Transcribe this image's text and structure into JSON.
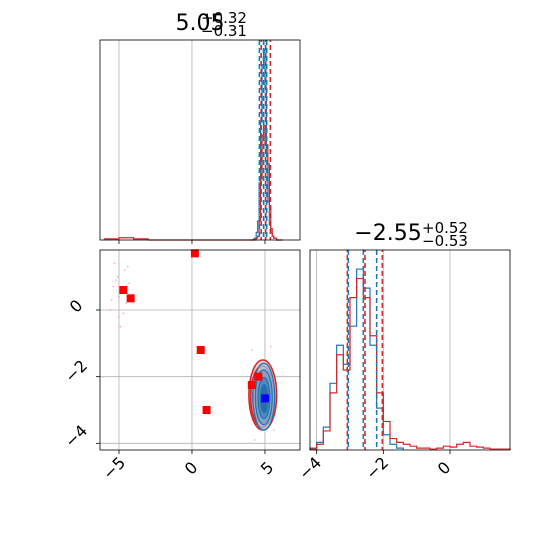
{
  "chart_data": {
    "type": "corner",
    "grid": true,
    "colors": {
      "series_1": "#1f77b4",
      "series_2": "#d62728",
      "marker_red": "#ff0000",
      "marker_blue": "#0000ff",
      "scatter_points": "#e377c2"
    },
    "panels": [
      {
        "id": "top",
        "type": "histogram",
        "title": {
          "value": "5.05",
          "plus": "+0.32",
          "minus": "−0.31"
        },
        "xlim": [
          -6.3,
          7.4
        ],
        "ylim": [
          0,
          1.05
        ],
        "x_ticks": [
          -5,
          0,
          5
        ],
        "quantiles": {
          "series_2": [
            4.74,
            5.05,
            5.37
          ],
          "series_1": [
            4.62,
            4.9,
            5.12
          ]
        },
        "series": [
          {
            "color": "#1f77b4",
            "bins": [
              4.0,
              4.2,
              4.3,
              4.4,
              4.5,
              4.6,
              4.7,
              4.8,
              4.9,
              5.0,
              5.1,
              5.2,
              5.3,
              5.4,
              5.5,
              5.6,
              5.8,
              6.0,
              6.2
            ],
            "counts": [
              0,
              0.005,
              0.01,
              0.04,
              0.1,
              0.3,
              0.62,
              0.92,
              1.0,
              0.8,
              0.45,
              0.2,
              0.08,
              0.04,
              0.02,
              0.01,
              0,
              0
            ]
          },
          {
            "color": "#d62728",
            "bins": [
              -6.0,
              -5.0,
              -4.0,
              -3.0,
              4.4,
              4.5,
              4.6,
              4.7,
              4.8,
              4.9,
              5.0,
              5.1,
              5.2,
              5.3,
              5.4,
              5.5,
              5.6,
              5.8,
              6.0,
              6.2
            ],
            "counts": [
              0.006,
              0.012,
              0.006,
              0,
              0.01,
              0.02,
              0.1,
              0.32,
              0.55,
              0.6,
              0.5,
              0.5,
              0.4,
              0.18,
              0.06,
              0.02,
              0.01,
              0,
              0
            ]
          }
        ]
      },
      {
        "id": "scatter",
        "type": "2d",
        "xlim": [
          -6.3,
          7.4
        ],
        "ylim": [
          -4.2,
          1.8
        ],
        "x_ticks": [
          -5,
          0,
          5
        ],
        "x_tick_labels": [
          "−5",
          "0",
          "5"
        ],
        "y_ticks": [
          -4,
          -2,
          0
        ],
        "y_tick_labels": [
          "−4",
          "−2",
          "0"
        ],
        "scatter_points": [
          [
            -5.2,
            0.9
          ],
          [
            -4.8,
            0.6
          ],
          [
            -5.5,
            0.3
          ],
          [
            -4.6,
            1.2
          ],
          [
            -5.0,
            -0.2
          ],
          [
            -4.3,
            0.8
          ],
          [
            -5.3,
            1.4
          ],
          [
            -4.9,
            -0.5
          ],
          [
            -5.6,
            0.0
          ],
          [
            -4.5,
            0.2
          ],
          [
            -5.1,
            1.0
          ],
          [
            -4.7,
            -0.1
          ],
          [
            -5.4,
            0.7
          ],
          [
            -4.4,
            1.3
          ],
          [
            -5.0,
            0.4
          ],
          [
            4.1,
            -1.2
          ],
          [
            5.4,
            -1.1
          ],
          [
            4.3,
            -3.9
          ],
          [
            5.6,
            -3.6
          ],
          [
            4.0,
            -2.5
          ],
          [
            5.8,
            -2.2
          ]
        ],
        "contours": {
          "series_2": [
            {
              "cx": 4.85,
              "cy": -2.55,
              "rx": 0.95,
              "ry": 1.05
            },
            {
              "cx": 4.82,
              "cy": -2.6,
              "rx": 0.8,
              "ry": 0.92
            },
            {
              "cx": 4.8,
              "cy": -2.6,
              "rx": 0.62,
              "ry": 0.78
            },
            {
              "cx": 4.85,
              "cy": -2.65,
              "rx": 0.45,
              "ry": 0.6
            }
          ],
          "series_1": [
            {
              "cx": 4.92,
              "cy": -2.6,
              "rx": 0.75,
              "ry": 1.0
            },
            {
              "cx": 4.92,
              "cy": -2.62,
              "rx": 0.58,
              "ry": 0.82
            },
            {
              "cx": 4.93,
              "cy": -2.64,
              "rx": 0.4,
              "ry": 0.62
            },
            {
              "cx": 4.95,
              "cy": -2.66,
              "rx": 0.25,
              "ry": 0.42
            }
          ]
        },
        "red_markers": [
          [
            -4.7,
            0.6
          ],
          [
            -4.2,
            0.35
          ],
          [
            0.2,
            1.7
          ],
          [
            0.6,
            -1.2
          ],
          [
            1.0,
            -3.0
          ],
          [
            4.1,
            -2.25
          ],
          [
            4.55,
            -2.0
          ]
        ],
        "blue_marker": [
          5.0,
          -2.65
        ]
      },
      {
        "id": "right",
        "type": "histogram",
        "title": {
          "value": "−2.55",
          "plus": "+0.52",
          "minus": "−0.53"
        },
        "xlim": [
          -4.2,
          1.8
        ],
        "ylim": [
          0,
          1.05
        ],
        "x_ticks": [
          -4,
          -2,
          0
        ],
        "x_tick_labels": [
          "−4",
          "−2",
          "0"
        ],
        "quantiles": {
          "series_2": [
            -3.08,
            -2.55,
            -2.03
          ],
          "series_1": [
            -3.05,
            -2.6,
            -2.2
          ]
        },
        "series": [
          {
            "color": "#1f77b4",
            "bins": [
              -4.2,
              -4.0,
              -3.8,
              -3.6,
              -3.4,
              -3.2,
              -3.0,
              -2.8,
              -2.6,
              -2.4,
              -2.2,
              -2.0,
              -1.8,
              -1.6,
              -1.4
            ],
            "counts": [
              0.01,
              0.04,
              0.12,
              0.35,
              0.55,
              0.45,
              0.65,
              0.95,
              0.85,
              0.55,
              0.22,
              0.08,
              0.03,
              0.01
            ]
          },
          {
            "color": "#d62728",
            "bins": [
              -4.2,
              -4.0,
              -3.8,
              -3.6,
              -3.4,
              -3.2,
              -3.0,
              -2.8,
              -2.6,
              -2.4,
              -2.2,
              -2.0,
              -1.8,
              -1.6,
              -1.4,
              -1.2,
              -1.0,
              -0.8,
              -0.6,
              -0.4,
              -0.2,
              0.0,
              0.2,
              0.4,
              0.6,
              0.8,
              1.0,
              1.2,
              1.4,
              1.6,
              1.8
            ],
            "counts": [
              0.005,
              0.03,
              0.1,
              0.3,
              0.5,
              0.42,
              0.8,
              0.9,
              0.8,
              0.6,
              0.3,
              0.15,
              0.06,
              0.04,
              0.03,
              0.02,
              0.01,
              0.01,
              0.005,
              0.01,
              0.02,
              0.015,
              0.03,
              0.04,
              0.02,
              0.015,
              0.01,
              0.005,
              0.005,
              0.005
            ]
          }
        ]
      }
    ]
  }
}
